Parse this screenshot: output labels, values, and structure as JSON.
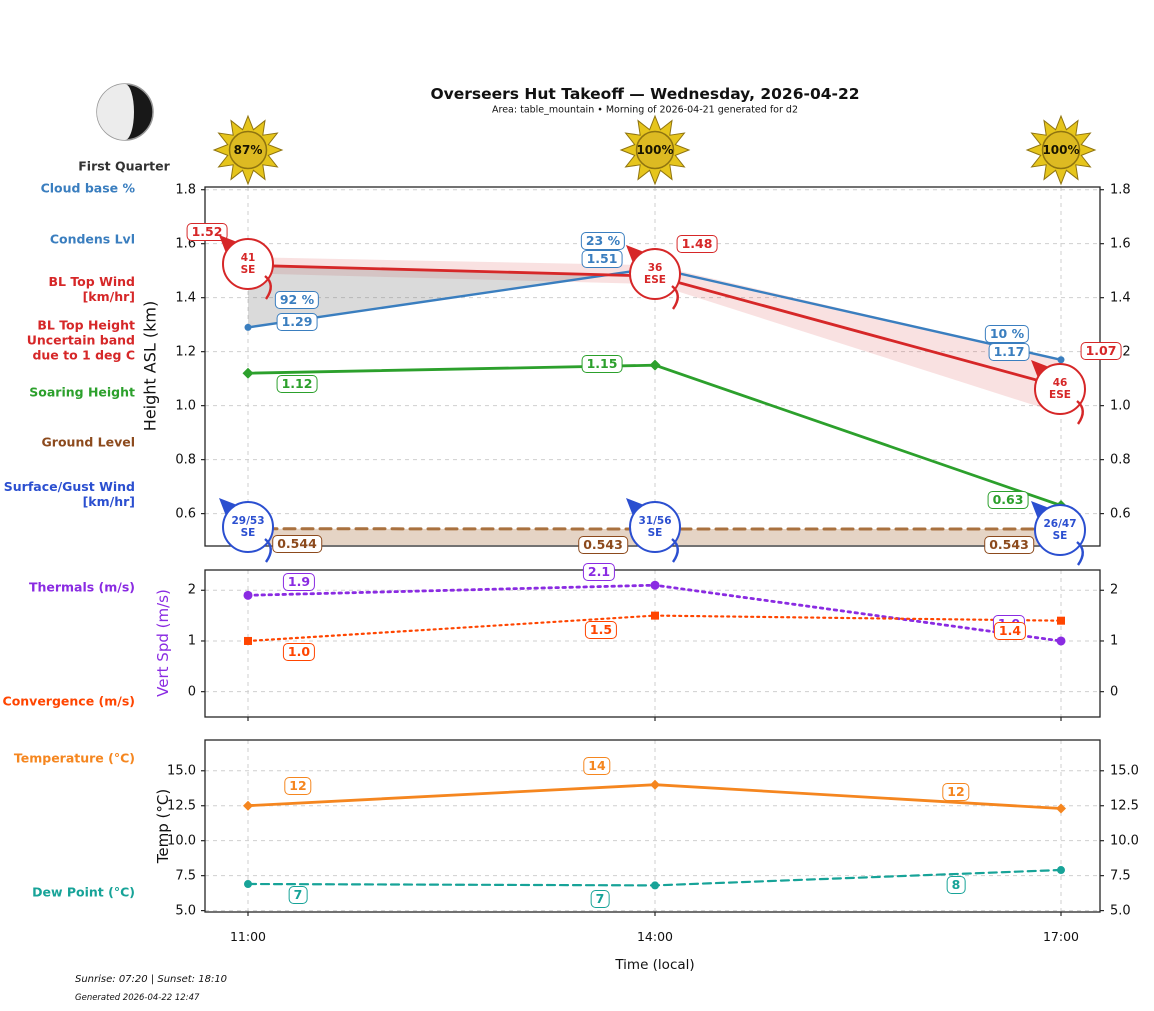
{
  "header": {
    "title": "Overseers Hut Takeoff — Wednesday, 2026-04-22",
    "subtitle": "Area: table_mountain • Morning of 2026-04-21 generated for d2"
  },
  "moon": {
    "phase": "First Quarter"
  },
  "suns": [
    {
      "label": "87%"
    },
    {
      "label": "100%"
    },
    {
      "label": "100%"
    }
  ],
  "colors": {
    "condens": "#3a7ebf",
    "bltop": "#d62728",
    "soaring": "#2ca02c",
    "ground": "#8c4a1d",
    "ground_line": "#a9713f",
    "surface": "#2b4fd0",
    "thermals": "#8a2be2",
    "convergence": "#ff4500",
    "temperature": "#f5861f",
    "dew": "#17a398",
    "grid": "#cfcfcf",
    "spine": "#262626",
    "sun_fill": "#e6c51c",
    "sun_edge": "#8f7410"
  },
  "left_labels": [
    {
      "text": "Cloud base %",
      "color": "condens"
    },
    {
      "text": "Condens Lvl",
      "color": "condens"
    },
    {
      "text": "BL Top Wind\n[km/hr]",
      "color": "bltop"
    },
    {
      "text": "BL Top Height\nUncertain band\ndue to 1 deg C",
      "color": "bltop"
    },
    {
      "text": "Soaring Height",
      "color": "soaring"
    },
    {
      "text": "Ground Level",
      "color": "ground"
    },
    {
      "text": "Surface/Gust Wind\n[km/hr]",
      "color": "surface"
    },
    {
      "text": "Thermals (m/s)",
      "color": "thermals"
    },
    {
      "text": "Convergence (m/s)",
      "color": "convergence"
    },
    {
      "text": "Temperature (°C)",
      "color": "temperature"
    },
    {
      "text": "Dew Point (°C)",
      "color": "dew"
    }
  ],
  "xticks": [
    "11:00",
    "14:00",
    "17:00"
  ],
  "xlabel": "Time (local)",
  "footer": {
    "sun_times": "Sunrise: 07:20 | Sunset: 18:10",
    "generated": "Generated 2026-04-22 12:47"
  },
  "chart_data": [
    {
      "type": "line",
      "x": [
        "11:00",
        "14:00",
        "17:00"
      ],
      "ylabel": "Height ASL (km)",
      "ylim": [
        0.48,
        1.81
      ],
      "yticks": [
        0.6,
        0.8,
        1.0,
        1.2,
        1.4,
        1.6,
        1.8
      ],
      "ytick_labels": [
        "0.6",
        "0.8",
        "1.0",
        "1.2",
        "1.4",
        "1.6",
        "1.8"
      ],
      "grid": true,
      "series": [
        {
          "name": "Condensation Level",
          "color_key": "condens",
          "style": "solid",
          "marker": "circle",
          "values": [
            1.29,
            1.51,
            1.17
          ],
          "point_labels": [
            "1.29",
            "1.51",
            "1.17"
          ],
          "cloud_base_pct_labels": [
            "92 %",
            "23 %",
            "10 %"
          ]
        },
        {
          "name": "BL Top Height",
          "color_key": "bltop",
          "style": "solid",
          "marker": "none",
          "values": [
            1.52,
            1.48,
            1.07
          ],
          "point_labels": [
            "1.52",
            "1.48",
            "1.07"
          ]
        },
        {
          "name": "Soaring Height",
          "color_key": "soaring",
          "style": "solid",
          "marker": "diamond",
          "values": [
            1.12,
            1.15,
            0.63
          ],
          "point_labels": [
            "1.12",
            "1.15",
            "0.63"
          ]
        },
        {
          "name": "Ground Level",
          "color_key": "ground",
          "style": "dashed",
          "marker": "none",
          "values": [
            0.544,
            0.543,
            0.543
          ],
          "point_labels": [
            "0.544",
            "0.543",
            "0.543"
          ]
        }
      ],
      "bands": [
        {
          "name": "bl-top-uncertainty-band",
          "upper": [
            1.55,
            1.52,
            1.17
          ],
          "lower": [
            1.49,
            1.45,
            0.97
          ]
        }
      ],
      "annotations": {
        "bl_top_wind": [
          {
            "speed": "41",
            "dir": "SE"
          },
          {
            "speed": "36",
            "dir": "ESE"
          },
          {
            "speed": "46",
            "dir": "ESE"
          }
        ],
        "surface_gust_wind": [
          {
            "speed": "29/53",
            "dir": "SE"
          },
          {
            "speed": "31/56",
            "dir": "SE"
          },
          {
            "speed": "26/47",
            "dir": "SE"
          }
        ]
      }
    },
    {
      "type": "line",
      "x": [
        "11:00",
        "14:00",
        "17:00"
      ],
      "ylabel": "Vert Spd (m/s)",
      "ylim": [
        -0.5,
        2.4
      ],
      "yticks": [
        0,
        1,
        2
      ],
      "ytick_labels": [
        "0",
        "1",
        "2"
      ],
      "grid": true,
      "series": [
        {
          "name": "Thermals",
          "color_key": "thermals",
          "style": "dotted",
          "marker": "circle",
          "values": [
            1.9,
            2.1,
            1.0
          ],
          "point_labels": [
            "1.9",
            "2.1",
            "1.0"
          ]
        },
        {
          "name": "Convergence",
          "color_key": "convergence",
          "style": "dotted",
          "marker": "square",
          "values": [
            1.0,
            1.5,
            1.4
          ],
          "point_labels": [
            "1.0",
            "1.5",
            "1.4"
          ]
        }
      ]
    },
    {
      "type": "line",
      "x": [
        "11:00",
        "14:00",
        "17:00"
      ],
      "ylabel": "Temp (°C)",
      "ylim": [
        4.9,
        17.2
      ],
      "yticks": [
        5.0,
        7.5,
        10.0,
        12.5,
        15.0
      ],
      "ytick_labels": [
        "5.0",
        "7.5",
        "10.0",
        "12.5",
        "15.0"
      ],
      "grid": true,
      "series": [
        {
          "name": "Temperature",
          "color_key": "temperature",
          "style": "solid",
          "marker": "diamond",
          "values": [
            12.5,
            14.0,
            12.3
          ],
          "point_labels": [
            "12",
            "14",
            "12"
          ]
        },
        {
          "name": "Dew Point",
          "color_key": "dew",
          "style": "dashed",
          "marker": "circle",
          "values": [
            6.9,
            6.8,
            7.9
          ],
          "point_labels": [
            "7",
            "7",
            "8"
          ]
        }
      ]
    }
  ]
}
